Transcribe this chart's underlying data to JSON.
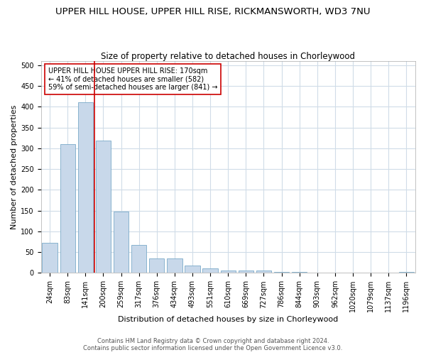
{
  "title_line1": "UPPER HILL HOUSE, UPPER HILL RISE, RICKMANSWORTH, WD3 7NU",
  "title_line2": "Size of property relative to detached houses in Chorleywood",
  "xlabel": "Distribution of detached houses by size in Chorleywood",
  "ylabel": "Number of detached properties",
  "categories": [
    "24sqm",
    "83sqm",
    "141sqm",
    "200sqm",
    "259sqm",
    "317sqm",
    "376sqm",
    "434sqm",
    "493sqm",
    "551sqm",
    "610sqm",
    "669sqm",
    "727sqm",
    "786sqm",
    "844sqm",
    "903sqm",
    "962sqm",
    "1020sqm",
    "1079sqm",
    "1137sqm",
    "1196sqm"
  ],
  "values": [
    72,
    310,
    410,
    318,
    147,
    68,
    35,
    35,
    18,
    11,
    6,
    5,
    5,
    3,
    3,
    1,
    0,
    0,
    0,
    0,
    3
  ],
  "bar_color": "#c8d8ea",
  "bar_edge_color": "#7aaac8",
  "vline_color": "#cc0000",
  "annotation_text": "UPPER HILL HOUSE UPPER HILL RISE: 170sqm\n← 41% of detached houses are smaller (582)\n59% of semi-detached houses are larger (841) →",
  "annotation_box_color": "white",
  "annotation_box_edge": "#cc0000",
  "ylim": [
    0,
    510
  ],
  "yticks": [
    0,
    50,
    100,
    150,
    200,
    250,
    300,
    350,
    400,
    450,
    500
  ],
  "footer1": "Contains HM Land Registry data © Crown copyright and database right 2024.",
  "footer2": "Contains public sector information licensed under the Open Government Licence v3.0.",
  "bg_color": "#ffffff",
  "plot_bg_color": "#ffffff",
  "grid_color": "#d0dce8",
  "title_fontsize": 9.5,
  "subtitle_fontsize": 8.5,
  "axis_label_fontsize": 8,
  "tick_fontsize": 7,
  "annotation_fontsize": 7,
  "footer_fontsize": 6
}
